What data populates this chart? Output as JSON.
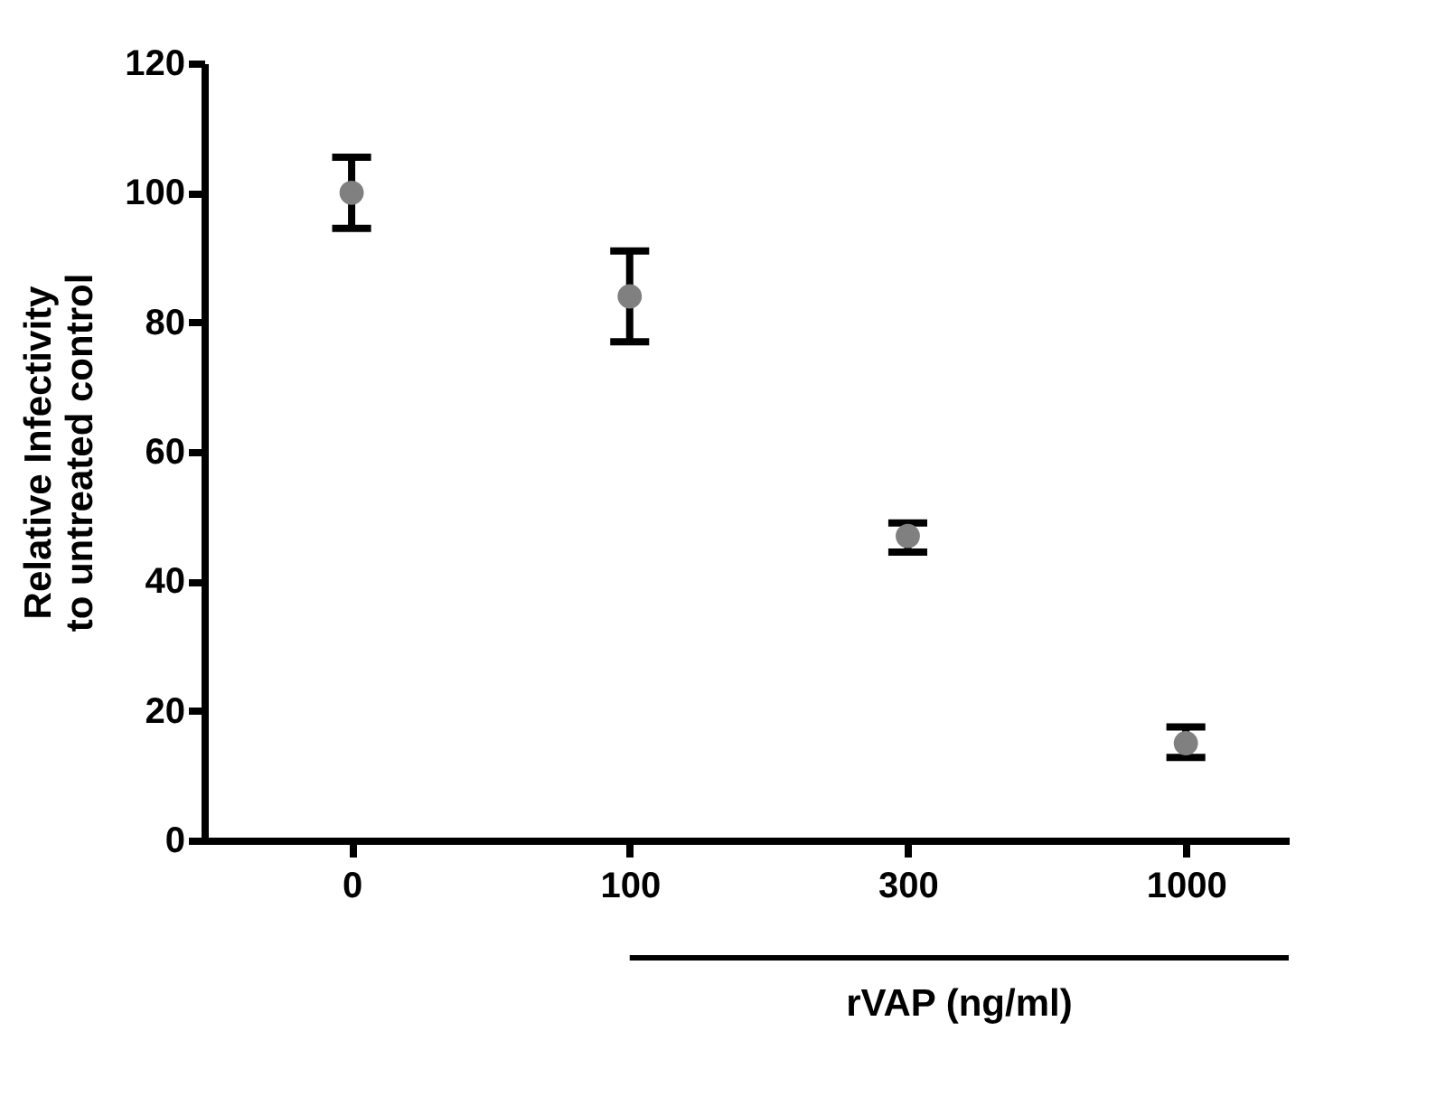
{
  "chart_data": {
    "type": "scatter",
    "xlabel": "rVAP (ng/ml)",
    "ylabel": "Relative Infectivity\nto untreated control",
    "categories": [
      "0",
      "100",
      "300",
      "1000"
    ],
    "values": [
      100,
      84,
      47,
      15
    ],
    "errors": [
      [
        94.5,
        105.5
      ],
      [
        77,
        91
      ],
      [
        44.5,
        49
      ],
      [
        12.8,
        17.5
      ]
    ],
    "color": "#808080",
    "marker": "circle",
    "ylim": [
      0,
      120
    ],
    "yticks": [
      0,
      20,
      40,
      60,
      80,
      100,
      120
    ],
    "grid": false
  }
}
